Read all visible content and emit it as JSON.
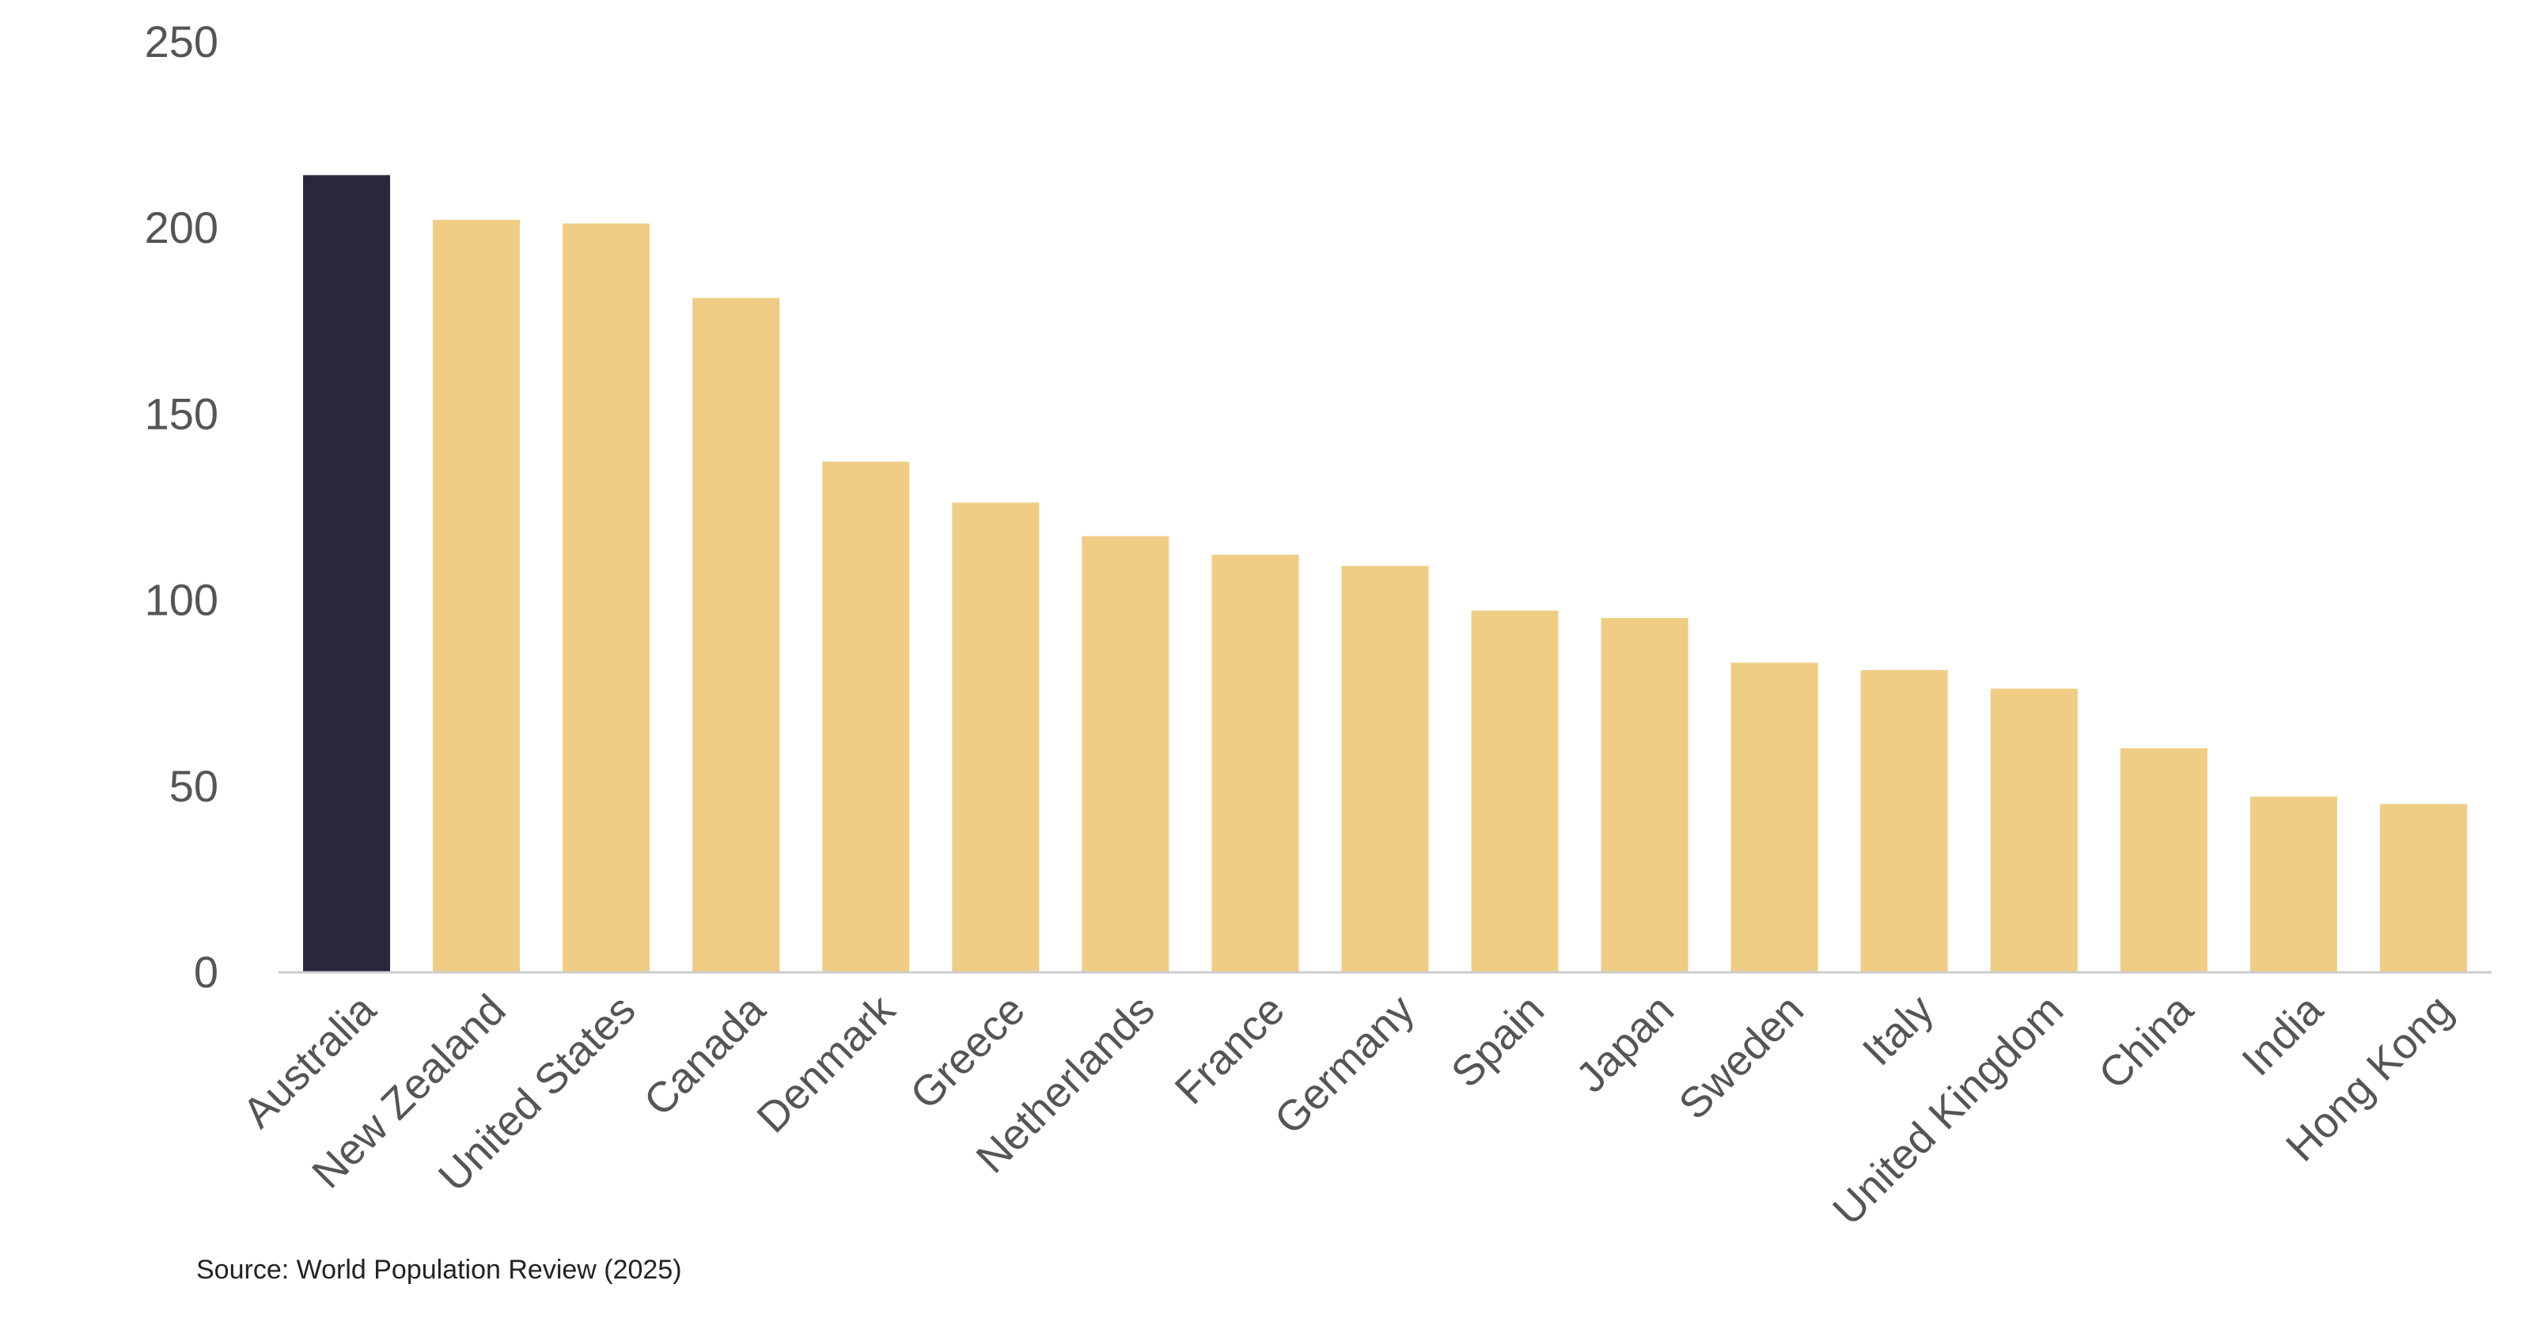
{
  "chart_data": {
    "type": "bar",
    "categories": [
      "Australia",
      "New Zealand",
      "United States",
      "Canada",
      "Denmark",
      "Greece",
      "Netherlands",
      "France",
      "Germany",
      "Spain",
      "Japan",
      "Sweden",
      "Italy",
      "United Kingdom",
      "China",
      "India",
      "Hong Kong"
    ],
    "values": [
      214,
      202,
      201,
      181,
      137,
      126,
      117,
      112,
      109,
      97,
      95,
      83,
      81,
      76,
      60,
      47,
      45
    ],
    "ylim": [
      0,
      250
    ],
    "yticks": [
      "0",
      "50",
      "100",
      "150",
      "200",
      "250"
    ],
    "title": "",
    "xlabel": "",
    "ylabel": "",
    "grid": false,
    "legend": "none",
    "colors": {
      "highlight": "#2a263c",
      "default": "#f0cd84",
      "axis": "#cccccc",
      "tick_text": "#555555"
    },
    "highlight_category": "Australia"
  },
  "source": "Source: World Population Review (2025)"
}
